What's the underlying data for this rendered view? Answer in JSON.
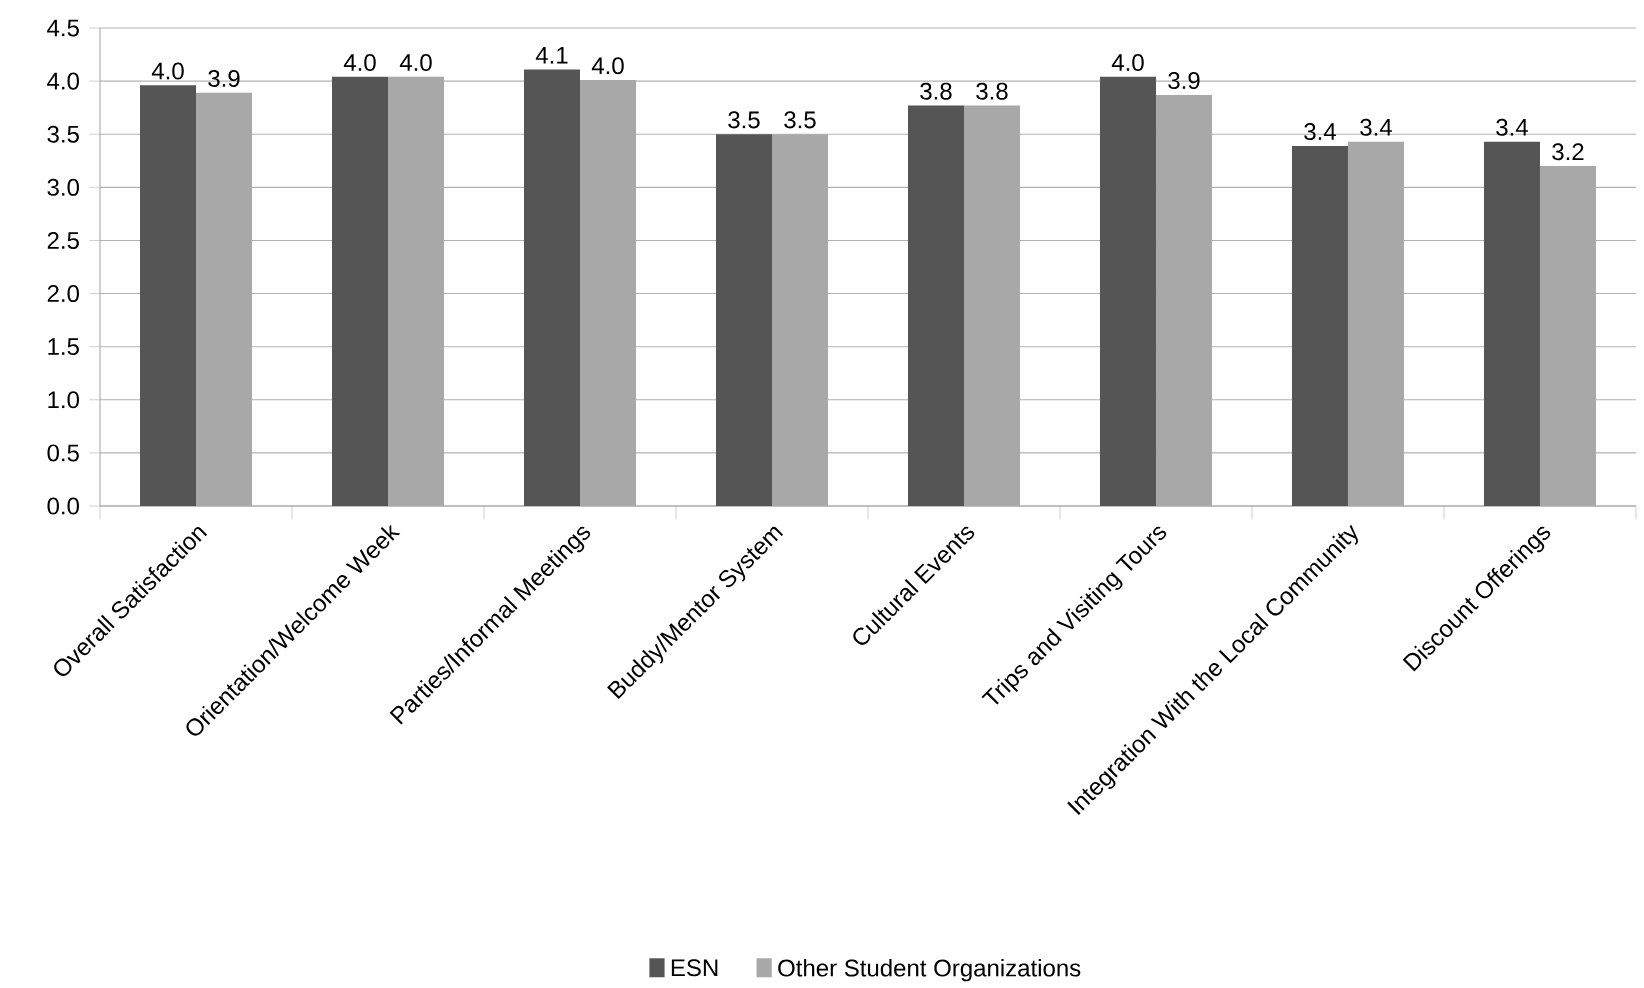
{
  "chart_data": {
    "type": "bar",
    "categories": [
      "Overall Satisfaction",
      "Orientation/Welcome Week",
      "Parties/Informal Meetings",
      "Buddy/Mentor System",
      "Cultural Events",
      "Trips and Visiting Tours",
      "Integration With the Local Community",
      "Discount Offerings"
    ],
    "series": [
      {
        "name": "ESN",
        "color": "#555555",
        "values": [
          3.96,
          4.04,
          4.11,
          3.5,
          3.77,
          4.04,
          3.39,
          3.43
        ],
        "value_labels": [
          "4.0",
          "4.0",
          "4.1",
          "3.5",
          "3.8",
          "4.0",
          "3.4",
          "3.4"
        ]
      },
      {
        "name": "Other Student Organizations",
        "color": "#a8a8a8",
        "values": [
          3.89,
          4.04,
          4.01,
          3.5,
          3.77,
          3.87,
          3.43,
          3.2
        ],
        "value_labels": [
          "3.9",
          "4.0",
          "4.0",
          "3.5",
          "3.8",
          "3.9",
          "3.4",
          "3.2"
        ]
      }
    ],
    "ylim": [
      0,
      4.5
    ],
    "yticks": [
      "0.0",
      "0.5",
      "1.0",
      "1.5",
      "2.0",
      "2.5",
      "3.0",
      "3.5",
      "4.0",
      "4.5"
    ],
    "grid": "y",
    "legend": "bottom"
  }
}
